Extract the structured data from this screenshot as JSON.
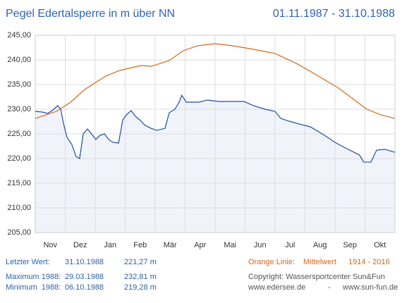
{
  "chart_data": {
    "type": "line",
    "title": "Pegel Edertalsperre in m über NN",
    "subtitle": "01.11.1987 - 31.10.1988",
    "categories": [
      "Nov",
      "Dez",
      "Jan",
      "Feb",
      "Mär",
      "Apr",
      "Mai",
      "Jun",
      "Jul",
      "Aug",
      "Sep",
      "Okt"
    ],
    "xlim": [
      0,
      12
    ],
    "ylim": [
      205,
      245
    ],
    "yticks": [
      {
        "value": 205,
        "label": "205,00"
      },
      {
        "value": 210,
        "label": "210,00"
      },
      {
        "value": 215,
        "label": "215,00"
      },
      {
        "value": 220,
        "label": "220,00"
      },
      {
        "value": 225,
        "label": "225,00"
      },
      {
        "value": 230,
        "label": "230,00"
      },
      {
        "value": 235,
        "label": "235,00"
      },
      {
        "value": 240,
        "label": "240,00"
      },
      {
        "value": 245,
        "label": "245,00"
      }
    ],
    "grid": true,
    "series": [
      {
        "color": "#d2691e",
        "x": [
          0,
          0.71,
          1.18,
          1.65,
          2.35,
          2.82,
          3.53,
          3.88,
          4.47,
          4.94,
          5.41,
          6,
          6.59,
          7.29,
          8,
          8.71,
          9.41,
          10.12,
          10.59,
          11.06,
          11.53,
          12
        ],
        "values": [
          228.14,
          229.57,
          231.43,
          234,
          236.71,
          237.86,
          238.86,
          238.71,
          239.86,
          241.86,
          242.86,
          243.29,
          242.86,
          242.14,
          241.29,
          239.29,
          236.86,
          234.29,
          232.14,
          230,
          228.86,
          228.14
        ]
      },
      {
        "color": "#1f4e9c",
        "fill": "#f1f3fb",
        "x": [
          0,
          0.24,
          0.42,
          0.59,
          0.75,
          0.85,
          0.94,
          1.06,
          1.22,
          1.36,
          1.48,
          1.6,
          1.74,
          1.88,
          2.02,
          2.16,
          2.31,
          2.45,
          2.59,
          2.78,
          2.92,
          3.06,
          3.2,
          3.34,
          3.48,
          3.67,
          3.86,
          4.05,
          4.33,
          4.47,
          4.66,
          4.8,
          4.89,
          5.04,
          5.22,
          5.46,
          5.74,
          6.12,
          6.59,
          6.96,
          7.29,
          7.67,
          8,
          8.19,
          8.47,
          8.89,
          9.18,
          9.65,
          10,
          10.35,
          10.82,
          10.96,
          11.2,
          11.39,
          11.67,
          12
        ],
        "values": [
          229.57,
          229.43,
          229.14,
          229.86,
          230.71,
          230,
          227.14,
          224.29,
          222.86,
          220.43,
          220,
          225,
          226,
          225,
          223.86,
          224.71,
          225,
          223.86,
          223.29,
          223.14,
          227.86,
          229,
          229.71,
          228.57,
          227.86,
          226.71,
          226.14,
          225.71,
          226.14,
          229.29,
          230,
          231.43,
          232.81,
          231.43,
          231.43,
          231.43,
          231.86,
          231.57,
          231.57,
          231.57,
          230.71,
          230,
          229.57,
          228.14,
          227.57,
          226.86,
          226.43,
          224.71,
          223.29,
          222.14,
          220.71,
          219.28,
          219.28,
          221.71,
          221.86,
          221.27
        ]
      }
    ],
    "footer": {
      "last_label": "Letzter Wert:",
      "last_date": "31.10.1988",
      "last_value": "221,27 m",
      "max_label": "Maximum 1988:",
      "max_date": "29.03.1988",
      "max_value": "232,81 m",
      "min_label": "Minimum  1988:",
      "min_date": "06.10.1988",
      "min_value": "219,28 m",
      "orange_label": "Orange Linie:",
      "orange_desc": "Mittelwert",
      "orange_years": "1914 - 2016",
      "copyright": "Copyright: Wassersportcenter Sun&Fun",
      "site1": "www.edersee.de",
      "sep": "-",
      "site2": "www.sun-fun.de"
    }
  }
}
